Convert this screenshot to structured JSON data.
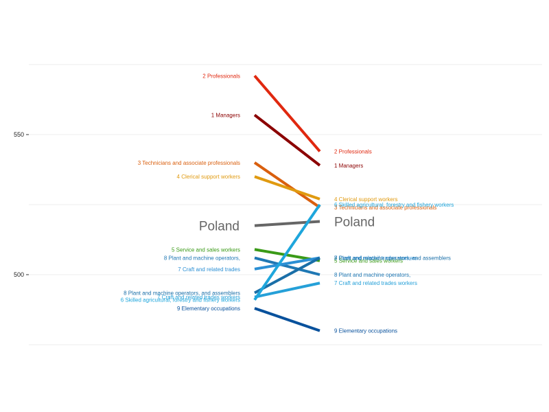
{
  "chart_data": {
    "type": "line",
    "title": "",
    "xlabel": "",
    "ylabel": "",
    "x": [
      "left",
      "right"
    ],
    "ylim": [
      475,
      576
    ],
    "yticks": [
      500,
      550
    ],
    "grid": true,
    "legend": "none",
    "series": [
      {
        "left_label": "2 Professionals",
        "right_label": "2 Professionals",
        "values": [
          571,
          544
        ],
        "color": "#e0280f",
        "width": 4
      },
      {
        "left_label": "1 Managers",
        "right_label": "1 Managers",
        "values": [
          557,
          539
        ],
        "color": "#8b0000",
        "width": 4
      },
      {
        "left_label": "3 Technicians and associate professionals",
        "right_label": "3 Technicians and associate professionals",
        "values": [
          540,
          524
        ],
        "color": "#d95f0e",
        "width": 4
      },
      {
        "left_label": "4 Clerical support workers",
        "right_label": "4 Clerical support workers",
        "values": [
          535,
          527
        ],
        "color": "#e09a10",
        "width": 4
      },
      {
        "left_label": "Poland",
        "right_label": "Poland",
        "values": [
          517.5,
          519
        ],
        "color": "#666666",
        "width": 4,
        "big": true
      },
      {
        "left_label": "5 Service and sales workers",
        "right_label": "5 Service and sales workers",
        "values": [
          509,
          505
        ],
        "color": "#3a9a17",
        "width": 4
      },
      {
        "left_label": "8 Plant and machine operators,",
        "right_label": "8 Plant and machine operators,",
        "values": [
          506,
          500
        ],
        "color": "#1f78b4",
        "width": 4
      },
      {
        "left_label": "7 Craft and related trades",
        "right_label": "7 Craft and related trades workers",
        "values": [
          502,
          506
        ],
        "color": "#2b8fd4",
        "width": 4
      },
      {
        "left_label": "8 Plant and machine operators, and assemblers",
        "right_label": "8 Plant and machine operators, and assemblers",
        "values": [
          493.5,
          506
        ],
        "color": "#1a6fa8",
        "width": 4
      },
      {
        "left_label": "7 Craft and related trades workers",
        "right_label": "7 Craft and related trades workers",
        "values": [
          492,
          497
        ],
        "color": "#25a0d8",
        "width": 4
      },
      {
        "left_label": "6 Skilled agricultural, forestry and fishery workers",
        "right_label": "6 Skilled agricultural, forestry and fishery workers",
        "values": [
          491,
          525
        ],
        "color": "#1ea6dc",
        "width": 4
      },
      {
        "left_label": "9 Elementary occupations",
        "right_label": "9 Elementary occupations",
        "values": [
          488,
          480
        ],
        "color": "#08519c",
        "width": 4
      }
    ]
  }
}
